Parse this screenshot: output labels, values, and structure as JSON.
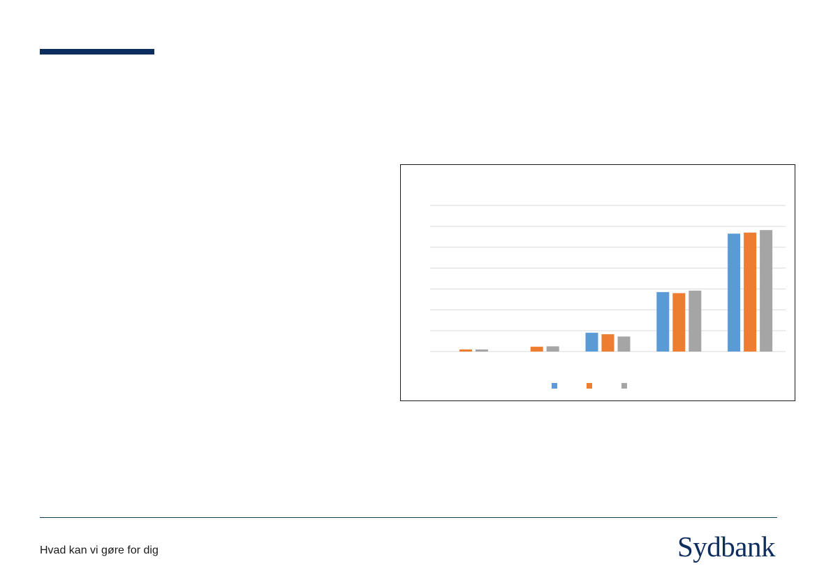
{
  "footer": {
    "tagline": "Hvad kan vi gøre for dig",
    "logo_text": "Sydbank"
  },
  "colors": {
    "accent": "#0d2d5e",
    "series": [
      "#5b9bd5",
      "#ed7d31",
      "#a5a5a5"
    ],
    "gridline": "#d9d9d9"
  },
  "chart_data": {
    "type": "bar",
    "categories": [
      "",
      "",
      "",
      "",
      ""
    ],
    "series": [
      {
        "values": [
          0,
          0,
          9,
          28.5,
          56.5
        ]
      },
      {
        "values": [
          1,
          2.3,
          8.3,
          28,
          57
        ]
      },
      {
        "values": [
          1,
          2.5,
          7.2,
          29.2,
          58.2
        ]
      }
    ],
    "ylim": [
      0,
      70
    ],
    "grid_step": 10,
    "grid": true,
    "legend": "bottom",
    "title": "",
    "xlabel": "",
    "ylabel": ""
  }
}
